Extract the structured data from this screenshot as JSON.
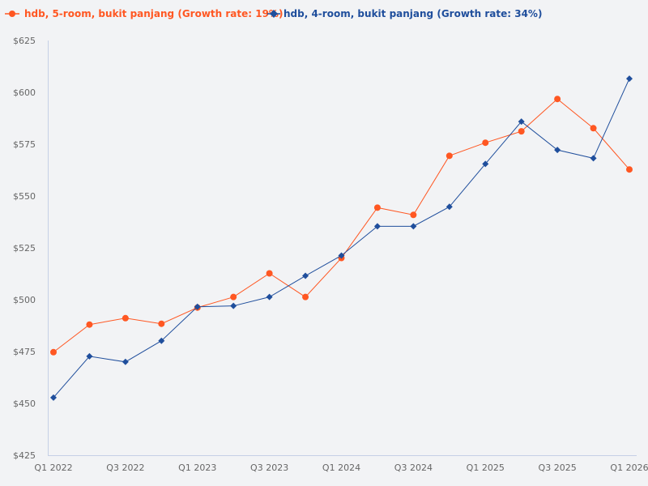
{
  "chart_data": {
    "type": "line",
    "title": "",
    "xlabel": "",
    "ylabel": "",
    "x": [
      "Q1 2022",
      "Q2 2022",
      "Q3 2022",
      "Q4 2022",
      "Q1 2023",
      "Q2 2023",
      "Q3 2023",
      "Q4 2023",
      "Q1 2024",
      "Q2 2024",
      "Q3 2024",
      "Q4 2024",
      "Q1 2025",
      "Q2 2025",
      "Q3 2025",
      "Q4 2025",
      "Q1 2026"
    ],
    "x_tick_labels": [
      "Q1 2022",
      "Q3 2022",
      "Q1 2023",
      "Q3 2023",
      "Q1 2024",
      "Q3 2024",
      "Q1 2025",
      "Q3 2025",
      "Q1 2026"
    ],
    "ylim": [
      425,
      625
    ],
    "y_ticks": [
      425,
      450,
      475,
      500,
      525,
      550,
      575,
      600,
      625
    ],
    "y_tick_labels": [
      "$425",
      "$450",
      "$475",
      "$500",
      "$525",
      "$550",
      "$575",
      "$600",
      "$625"
    ],
    "grid": false,
    "legend_position": "top-left",
    "series": [
      {
        "name": "hdb, 5-room, bukit panjang (Growth rate: 19%)",
        "color": "#ff5722",
        "marker": "circle",
        "values": [
          474.7,
          488,
          491.1,
          488.4,
          496.2,
          501.3,
          512.7,
          501.3,
          520.1,
          544.4,
          540.9,
          569.4,
          575.7,
          581.2,
          596.8,
          582.7,
          562.8
        ]
      },
      {
        "name": "hdb, 4-room, bukit panjang (Growth rate: 34%)",
        "color": "#1f4e9c",
        "marker": "diamond",
        "values": [
          452.8,
          472.7,
          470,
          480.2,
          496.6,
          497,
          501.3,
          511.5,
          521.3,
          535.4,
          535.4,
          544.8,
          565.5,
          585.9,
          572.2,
          568.2,
          606.6
        ]
      }
    ]
  }
}
